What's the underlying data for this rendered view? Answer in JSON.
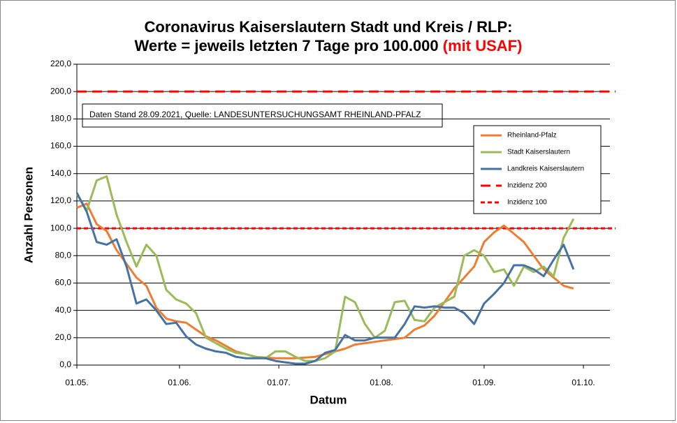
{
  "chart_data": {
    "type": "line",
    "title": "Coronavirus Kaiserslautern Stadt und Kreis / RLP:",
    "subtitle": "Werte = jeweils letzten 7 Tage pro 100.000",
    "subtitle_highlight": "(mit USAF)",
    "subtitle_highlight_color": "#ff0000",
    "annotation": "Daten Stand 28.09.2021, Quelle: LANDESUNTERSUCHUNGSAMT RHEINLAND-PFALZ",
    "x_label": "Datum",
    "y_label": "Anzahl Personen",
    "x": [
      "01.05.",
      "04.05.",
      "07.05.",
      "10.05.",
      "13.05.",
      "16.05.",
      "19.05.",
      "22.05.",
      "25.05.",
      "28.05.",
      "31.05.",
      "03.06.",
      "06.06.",
      "09.06.",
      "12.06.",
      "15.06.",
      "18.06.",
      "21.06.",
      "24.06.",
      "27.06.",
      "30.06.",
      "03.07.",
      "06.07.",
      "09.07.",
      "12.07.",
      "15.07.",
      "18.07.",
      "21.07.",
      "24.07.",
      "27.07.",
      "30.07.",
      "02.08.",
      "05.08.",
      "08.08.",
      "11.08.",
      "14.08.",
      "17.08.",
      "20.08.",
      "23.08.",
      "26.08.",
      "29.08.",
      "01.09.",
      "04.09.",
      "07.09.",
      "10.09.",
      "13.09.",
      "16.09.",
      "19.09.",
      "22.09.",
      "25.09.",
      "28.09."
    ],
    "xlim": [
      "01.05.",
      "09.10."
    ],
    "xticks": [
      "01.05.",
      "01.06.",
      "01.07.",
      "01.08.",
      "01.09.",
      "01.10."
    ],
    "ylim": [
      0,
      220
    ],
    "yticks": [
      {
        "value": 0,
        "label": "0,0"
      },
      {
        "value": 20,
        "label": "20,0"
      },
      {
        "value": 40,
        "label": "40,0"
      },
      {
        "value": 60,
        "label": "60,0"
      },
      {
        "value": 80,
        "label": "80,0"
      },
      {
        "value": 100,
        "label": "100,0"
      },
      {
        "value": 120,
        "label": "120,0"
      },
      {
        "value": 140,
        "label": "140,0"
      },
      {
        "value": 160,
        "label": "160,0"
      },
      {
        "value": 180,
        "label": "180,0"
      },
      {
        "value": 200,
        "label": "200,0"
      },
      {
        "value": 220,
        "label": "220,0"
      }
    ],
    "grid": true,
    "legend": "upper right",
    "series": [
      {
        "name": "Rheinland-Pfalz",
        "color": "#ed7d31",
        "values": [
          115,
          118,
          103,
          98,
          84,
          74,
          64,
          58,
          42,
          34,
          32,
          31,
          26,
          21,
          18,
          14,
          10,
          8,
          6,
          5.5,
          5,
          5,
          5,
          5.5,
          6,
          8,
          10,
          12,
          15,
          16,
          17,
          18,
          19,
          20,
          26,
          29,
          36,
          46,
          56,
          64,
          72,
          90,
          97,
          102,
          96,
          90,
          80,
          70,
          64,
          58,
          56
        ]
      },
      {
        "name": "Stadt Kaiserslautern",
        "color": "#9bbb59",
        "values": [
          125,
          113,
          135,
          138,
          110,
          90,
          72,
          88,
          80,
          55,
          48,
          45,
          38,
          20,
          16,
          12,
          9,
          8,
          6,
          5,
          10,
          10,
          6,
          3,
          3,
          5,
          10,
          50,
          46,
          30,
          20,
          25,
          46,
          47,
          33,
          32,
          42,
          46,
          50,
          80,
          84,
          80,
          68,
          70,
          58,
          72,
          68,
          72,
          65,
          93,
          107
        ]
      },
      {
        "name": "Landkreis Kaiserslautern",
        "color": "#4472a4",
        "values": [
          126,
          112,
          90,
          88,
          92,
          72,
          45,
          48,
          40,
          30,
          31,
          21,
          15,
          12,
          10,
          9,
          6,
          5,
          5,
          5,
          3,
          2,
          1,
          1,
          3,
          9,
          11,
          22,
          18,
          18,
          20,
          20,
          20,
          30,
          43,
          42,
          43,
          42,
          42,
          38,
          30,
          45,
          52,
          60,
          73,
          73,
          70,
          65,
          77,
          88,
          70
        ]
      }
    ],
    "reference_lines": [
      {
        "name": "Inzidenz 200",
        "value": 200,
        "color": "#ff0000",
        "dash": "long"
      },
      {
        "name": "Inzidenz 100",
        "value": 100,
        "color": "#ff0000",
        "dash": "short"
      }
    ]
  }
}
